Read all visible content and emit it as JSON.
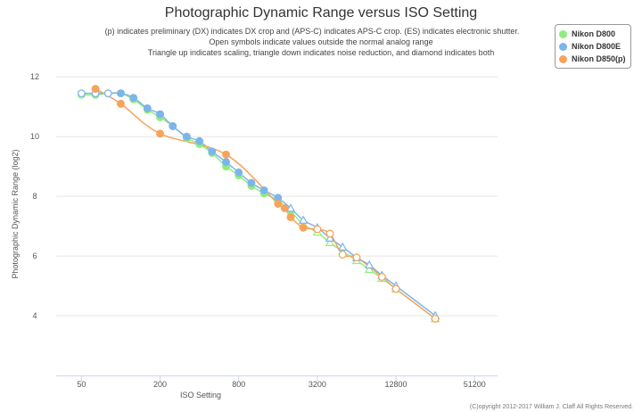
{
  "chart_data": {
    "type": "line",
    "title": "Photographic Dynamic Range versus ISO Setting",
    "subtitle_lines": [
      "(p) indicates preliminary (DX) indicates DX crop and (APS-C) indicates APS-C crop. (ES) indicates electronic shutter.",
      "Open symbols indicate values outside the normal analog range",
      "Triangle up indicates scaling, triangle down indicates noise reduction, and diamond indicates both"
    ],
    "xlabel": "ISO Setting",
    "ylabel": "Photographic Dynamic Range (log2)",
    "x_scale": "log2",
    "xlim": [
      32,
      76800
    ],
    "ylim": [
      2,
      12.5
    ],
    "x_ticks": [
      50,
      200,
      800,
      3200,
      12800,
      51200
    ],
    "y_ticks": [
      4,
      6,
      8,
      10,
      12
    ],
    "grid": "horizontal",
    "legend_position": "top-right",
    "series": [
      {
        "name": "Nikon D800",
        "color": "#90ed7d",
        "points": [
          {
            "x": 50,
            "y": 11.4,
            "open": true,
            "marker": "circle"
          },
          {
            "x": 64,
            "y": 11.4,
            "open": false,
            "marker": "circle"
          },
          {
            "x": 80,
            "y": 11.45,
            "open": true,
            "marker": "circle"
          },
          {
            "x": 100,
            "y": 11.45,
            "open": false,
            "marker": "circle"
          },
          {
            "x": 125,
            "y": 11.25,
            "open": false,
            "marker": "circle"
          },
          {
            "x": 160,
            "y": 10.9,
            "open": false,
            "marker": "circle"
          },
          {
            "x": 200,
            "y": 10.65,
            "open": false,
            "marker": "circle"
          },
          {
            "x": 250,
            "y": 10.35,
            "open": false,
            "marker": "circle"
          },
          {
            "x": 320,
            "y": 9.95,
            "open": false,
            "marker": "circle"
          },
          {
            "x": 400,
            "y": 9.75,
            "open": false,
            "marker": "circle"
          },
          {
            "x": 500,
            "y": 9.45,
            "open": false,
            "marker": "circle"
          },
          {
            "x": 640,
            "y": 9.0,
            "open": false,
            "marker": "circle"
          },
          {
            "x": 800,
            "y": 8.7,
            "open": false,
            "marker": "circle"
          },
          {
            "x": 1000,
            "y": 8.35,
            "open": false,
            "marker": "circle"
          },
          {
            "x": 1250,
            "y": 8.1,
            "open": false,
            "marker": "circle"
          },
          {
            "x": 1600,
            "y": 7.85,
            "open": false,
            "marker": "circle"
          },
          {
            "x": 2000,
            "y": 7.5,
            "open": false,
            "marker": "circle"
          },
          {
            "x": 2500,
            "y": 7.05,
            "open": true,
            "marker": "triangle"
          },
          {
            "x": 3200,
            "y": 6.8,
            "open": true,
            "marker": "triangle"
          },
          {
            "x": 4000,
            "y": 6.45,
            "open": true,
            "marker": "triangle"
          },
          {
            "x": 5000,
            "y": 6.15,
            "open": true,
            "marker": "triangle"
          },
          {
            "x": 6400,
            "y": 5.85,
            "open": true,
            "marker": "triangle"
          },
          {
            "x": 8000,
            "y": 5.55,
            "open": true,
            "marker": "triangle"
          },
          {
            "x": 10000,
            "y": 5.25,
            "open": true,
            "marker": "triangle"
          },
          {
            "x": 12800,
            "y": 4.9,
            "open": true,
            "marker": "triangle"
          },
          {
            "x": 25600,
            "y": 3.9,
            "open": true,
            "marker": "triangle"
          }
        ]
      },
      {
        "name": "Nikon D800E",
        "color": "#7cb5ec",
        "points": [
          {
            "x": 50,
            "y": 11.45,
            "open": true,
            "marker": "circle"
          },
          {
            "x": 64,
            "y": 11.45,
            "open": true,
            "marker": "circle"
          },
          {
            "x": 80,
            "y": 11.45,
            "open": true,
            "marker": "circle"
          },
          {
            "x": 100,
            "y": 11.45,
            "open": false,
            "marker": "circle"
          },
          {
            "x": 125,
            "y": 11.3,
            "open": false,
            "marker": "circle"
          },
          {
            "x": 160,
            "y": 10.95,
            "open": false,
            "marker": "circle"
          },
          {
            "x": 200,
            "y": 10.75,
            "open": false,
            "marker": "circle"
          },
          {
            "x": 250,
            "y": 10.35,
            "open": false,
            "marker": "circle"
          },
          {
            "x": 320,
            "y": 10.0,
            "open": false,
            "marker": "circle"
          },
          {
            "x": 400,
            "y": 9.85,
            "open": false,
            "marker": "circle"
          },
          {
            "x": 500,
            "y": 9.5,
            "open": false,
            "marker": "circle"
          },
          {
            "x": 640,
            "y": 9.15,
            "open": false,
            "marker": "circle"
          },
          {
            "x": 800,
            "y": 8.8,
            "open": false,
            "marker": "circle"
          },
          {
            "x": 1000,
            "y": 8.45,
            "open": false,
            "marker": "circle"
          },
          {
            "x": 1250,
            "y": 8.2,
            "open": false,
            "marker": "circle"
          },
          {
            "x": 1600,
            "y": 7.95,
            "open": false,
            "marker": "circle"
          },
          {
            "x": 2000,
            "y": 7.6,
            "open": true,
            "marker": "triangle"
          },
          {
            "x": 2500,
            "y": 7.2,
            "open": true,
            "marker": "triangle"
          },
          {
            "x": 3200,
            "y": 6.95,
            "open": true,
            "marker": "triangle"
          },
          {
            "x": 4000,
            "y": 6.6,
            "open": true,
            "marker": "triangle"
          },
          {
            "x": 5000,
            "y": 6.3,
            "open": true,
            "marker": "triangle"
          },
          {
            "x": 6400,
            "y": 5.95,
            "open": true,
            "marker": "triangle"
          },
          {
            "x": 8000,
            "y": 5.7,
            "open": true,
            "marker": "triangle"
          },
          {
            "x": 10000,
            "y": 5.35,
            "open": true,
            "marker": "triangle"
          },
          {
            "x": 12800,
            "y": 5.0,
            "open": true,
            "marker": "triangle"
          },
          {
            "x": 25600,
            "y": 4.0,
            "open": true,
            "marker": "triangle"
          }
        ]
      },
      {
        "name": "Nikon D850(p)",
        "color": "#f7a35c",
        "points": [
          {
            "x": 64,
            "y": 11.6,
            "open": false,
            "marker": "circle"
          },
          {
            "x": 100,
            "y": 11.1,
            "open": false,
            "marker": "circle"
          },
          {
            "x": 200,
            "y": 10.1,
            "open": false,
            "marker": "circle"
          },
          {
            "x": 640,
            "y": 9.4,
            "open": false,
            "marker": "circle"
          },
          {
            "x": 1600,
            "y": 7.75,
            "open": false,
            "marker": "circle"
          },
          {
            "x": 1800,
            "y": 7.6,
            "open": false,
            "marker": "circle"
          },
          {
            "x": 2000,
            "y": 7.3,
            "open": false,
            "marker": "circle"
          },
          {
            "x": 2500,
            "y": 6.95,
            "open": false,
            "marker": "circle"
          },
          {
            "x": 3200,
            "y": 6.9,
            "open": true,
            "marker": "circle"
          },
          {
            "x": 4000,
            "y": 6.75,
            "open": true,
            "marker": "circle"
          },
          {
            "x": 5000,
            "y": 6.05,
            "open": true,
            "marker": "circle"
          },
          {
            "x": 6400,
            "y": 5.95,
            "open": true,
            "marker": "circle"
          },
          {
            "x": 10000,
            "y": 5.3,
            "open": true,
            "marker": "circle"
          },
          {
            "x": 12800,
            "y": 4.9,
            "open": true,
            "marker": "circle"
          },
          {
            "x": 25600,
            "y": 3.9,
            "open": true,
            "marker": "circle"
          }
        ]
      }
    ]
  },
  "credits": "(C)opyright 2012-2017 William J. Claff All Rights Reserved."
}
